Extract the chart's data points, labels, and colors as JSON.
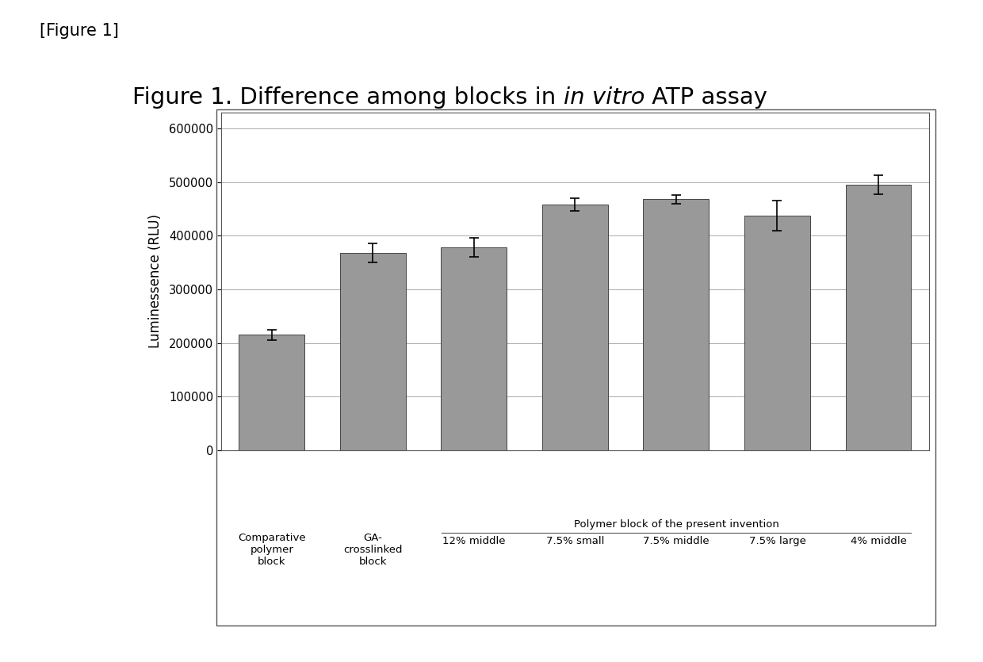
{
  "values": [
    215000,
    368000,
    378000,
    458000,
    468000,
    438000,
    495000
  ],
  "errors": [
    10000,
    18000,
    18000,
    12000,
    8000,
    28000,
    18000
  ],
  "bar_color": "#999999",
  "bar_edgecolor": "#444444",
  "ylabel": "Luminessence (RLU)",
  "ylim": [
    0,
    630000
  ],
  "yticks": [
    0,
    100000,
    200000,
    300000,
    400000,
    500000,
    600000
  ],
  "ytick_labels": [
    "0",
    "100000",
    "200000",
    "300000",
    "400000",
    "500000",
    "600000"
  ],
  "figure_label": "[Figure 1]",
  "title_normal1": "Figure 1. Difference among blocks in ",
  "title_italic": "in vitro",
  "title_normal2": " ATP assay",
  "group_label": "Polymer block of the present invention",
  "background_color": "#ffffff",
  "grid_color": "#aaaaaa",
  "bar_width": 0.65,
  "bar1_label_line1": "Comparative",
  "bar1_label_line2": "polymer",
  "bar1_label_line3": "block",
  "bar2_label_line1": "GA-",
  "bar2_label_line2": "crosslinked",
  "bar2_label_line3": "block",
  "sublabels": [
    "12% middle",
    "7.5% small",
    "7.5% middle",
    "7.5% large",
    "4% middle"
  ]
}
